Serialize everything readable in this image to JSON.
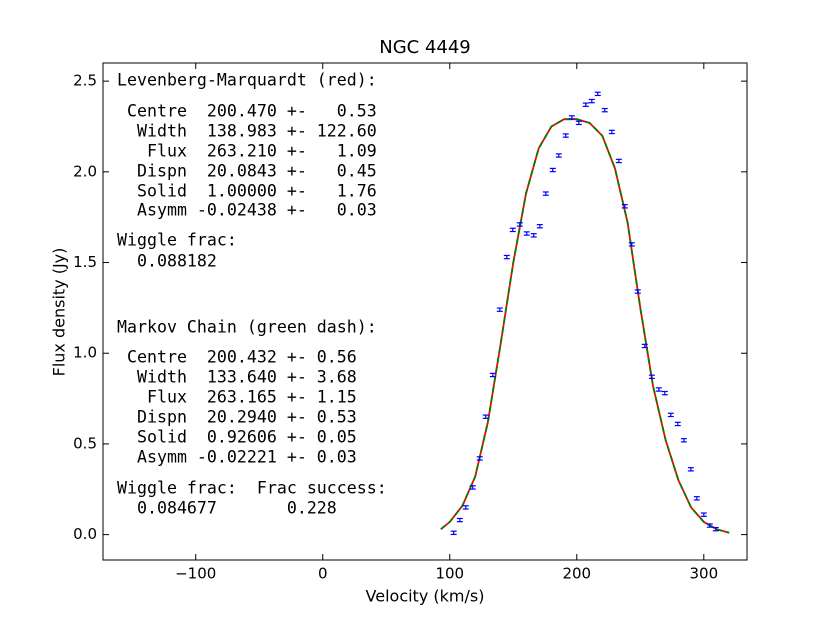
{
  "chart_data": {
    "type": "scatter",
    "title": "NGC 4449",
    "x_label": "Velocity (km/s)",
    "y_label": "Flux density (Jy)",
    "xlim": [
      -173,
      334
    ],
    "ylim": [
      -0.14,
      2.6
    ],
    "xticks": [
      {
        "value": -100,
        "label": "−100"
      },
      0,
      100,
      200,
      300
    ],
    "yticks": [
      {
        "value": 0,
        "label": "0.0"
      },
      0.5,
      {
        "value": 1,
        "label": "1.0"
      },
      1.5,
      {
        "value": 2,
        "label": "2.0"
      },
      2.5
    ],
    "color": "#0000ff",
    "x": [
      103.1,
      107.9,
      112.6,
      118.1,
      123.6,
      128.3,
      133.9,
      139.4,
      144.9,
      149.6,
      155.1,
      160.6,
      166.1,
      170.9,
      175.6,
      181.1,
      185.8,
      191.3,
      196.1,
      201.6,
      207.1,
      211.8,
      216.5,
      222.0,
      227.6,
      233.1,
      237.8,
      243.3,
      248.0,
      253.5,
      259.1,
      264.6,
      269.3,
      274.0,
      279.5,
      284.3,
      289.8,
      294.5,
      300.0,
      304.7,
      309.4
    ],
    "values": [
      0.01,
      0.08,
      0.15,
      0.26,
      0.42,
      0.65,
      0.88,
      1.24,
      1.53,
      1.68,
      1.71,
      1.66,
      1.65,
      1.7,
      1.88,
      2.01,
      2.09,
      2.2,
      2.3,
      2.27,
      2.37,
      2.39,
      2.43,
      2.34,
      2.22,
      2.06,
      1.81,
      1.6,
      1.34,
      1.04,
      0.87,
      0.8,
      0.78,
      0.66,
      0.61,
      0.52,
      0.36,
      0.2,
      0.11,
      0.05,
      0.03
    ],
    "errors": [
      0.02,
      0.02,
      0.02,
      0.02,
      0.02,
      0.02,
      0.02,
      0.02,
      0.02,
      0.02,
      0.02,
      0.02,
      0.02,
      0.02,
      0.02,
      0.02,
      0.02,
      0.02,
      0.02,
      0.02,
      0.02,
      0.02,
      0.02,
      0.02,
      0.02,
      0.02,
      0.02,
      0.02,
      0.02,
      0.02,
      0.02,
      0.02,
      0.02,
      0.02,
      0.02,
      0.02,
      0.02,
      0.02,
      0.02,
      0.02,
      0.02
    ],
    "line_x": [
      93,
      100,
      110,
      120,
      130,
      140,
      150,
      160,
      170,
      180,
      190,
      200,
      210,
      220,
      230,
      240,
      250,
      260,
      270,
      280,
      290,
      300,
      310,
      320
    ],
    "lines": [
      {
        "color": "#ff0000",
        "style": "solid",
        "values": [
          0.03,
          0.07,
          0.16,
          0.32,
          0.62,
          1.05,
          1.5,
          1.88,
          2.13,
          2.25,
          2.29,
          2.29,
          2.27,
          2.2,
          2.02,
          1.72,
          1.25,
          0.82,
          0.52,
          0.3,
          0.15,
          0.07,
          0.03,
          0.01
        ]
      },
      {
        "color": "#008000",
        "style": "dashed",
        "values": [
          0.03,
          0.07,
          0.16,
          0.32,
          0.62,
          1.05,
          1.5,
          1.88,
          2.13,
          2.25,
          2.29,
          2.29,
          2.27,
          2.2,
          2.02,
          1.72,
          1.25,
          0.82,
          0.52,
          0.3,
          0.15,
          0.07,
          0.03,
          0.01
        ]
      }
    ],
    "annotations": [
      "Levenberg-Marquardt (red):",
      " Centre  200.470 +-   0.53",
      "  Width  138.983 +- 122.60",
      "   Flux  263.210 +-   1.09",
      "  Dispn  20.0843 +-   0.45",
      "  Solid  1.00000 +-   1.76",
      "  Asymm -0.02438 +-   0.03",
      "Wiggle frac:",
      "  0.088182",
      "Markov Chain (green dash):",
      " Centre  200.432 +- 0.56",
      "  Width  133.640 +- 3.68",
      "   Flux  263.165 +- 1.15",
      "  Dispn  20.2940 +- 0.53",
      "  Solid  0.92606 +- 0.05",
      "  Asymm -0.02221 +- 0.03",
      "Wiggle frac:  Frac success:",
      "  0.084677       0.228"
    ]
  }
}
